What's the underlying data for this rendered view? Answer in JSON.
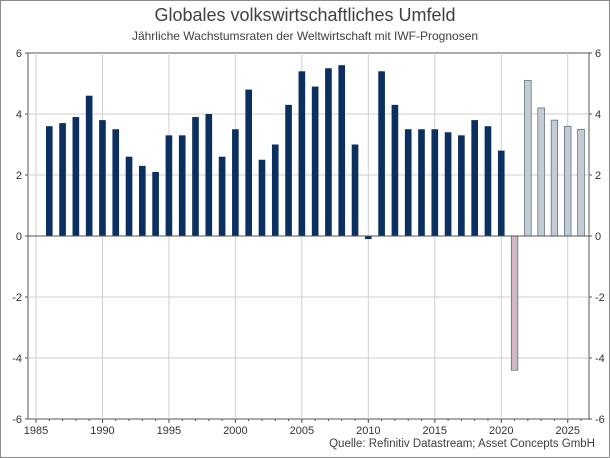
{
  "chart_data": {
    "type": "bar",
    "title": "Globales volkswirtschaftliches Umfeld",
    "subtitle": "Jährliche Wachstumsraten der Weltwirtschaft mit IWF-Prognosen",
    "source": "Quelle: Refinitiv Datastream; Asset Concepts GmbH",
    "xlabel": "",
    "ylabel": "",
    "xlim": [
      1985,
      2026
    ],
    "ylim": [
      -6,
      6
    ],
    "x_ticks": [
      1985,
      1990,
      1995,
      2000,
      2005,
      2010,
      2015,
      2020,
      2025
    ],
    "y_ticks": [
      -6,
      -4,
      -2,
      0,
      2,
      4,
      6
    ],
    "grid": true,
    "colors": {
      "historical": "#0b2f5e",
      "recession_2020": "#d2b8c3",
      "forecast": "#c3ccd5",
      "grid": "#cfcfcf",
      "axis": "#555555"
    },
    "series": [
      {
        "values": [
          {
            "x": 1986,
            "y": 3.6
          },
          {
            "x": 1987,
            "y": 3.7
          },
          {
            "x": 1988,
            "y": 3.9
          },
          {
            "x": 1989,
            "y": 4.6
          },
          {
            "x": 1990,
            "y": 3.8
          },
          {
            "x": 1991,
            "y": 3.5
          },
          {
            "x": 1992,
            "y": 2.6
          },
          {
            "x": 1993,
            "y": 2.3
          },
          {
            "x": 1994,
            "y": 2.1
          },
          {
            "x": 1995,
            "y": 3.3
          },
          {
            "x": 1996,
            "y": 3.3
          },
          {
            "x": 1997,
            "y": 3.9
          },
          {
            "x": 1998,
            "y": 4.0
          },
          {
            "x": 1999,
            "y": 2.6
          },
          {
            "x": 2000,
            "y": 3.5
          },
          {
            "x": 2001,
            "y": 4.8
          },
          {
            "x": 2002,
            "y": 2.5
          },
          {
            "x": 2003,
            "y": 3.0
          },
          {
            "x": 2004,
            "y": 4.3
          },
          {
            "x": 2005,
            "y": 5.4
          },
          {
            "x": 2006,
            "y": 4.9
          },
          {
            "x": 2007,
            "y": 5.5
          },
          {
            "x": 2008,
            "y": 5.6
          },
          {
            "x": 2009,
            "y": 3.0
          },
          {
            "x": 2010,
            "y": -0.1
          },
          {
            "x": 2011,
            "y": 5.4
          },
          {
            "x": 2012,
            "y": 4.3
          },
          {
            "x": 2013,
            "y": 3.5
          },
          {
            "x": 2014,
            "y": 3.5
          },
          {
            "x": 2015,
            "y": 3.5
          },
          {
            "x": 2016,
            "y": 3.4
          },
          {
            "x": 2017,
            "y": 3.3
          },
          {
            "x": 2018,
            "y": 3.8
          },
          {
            "x": 2019,
            "y": 3.6
          },
          {
            "x": 2020,
            "y": 2.8
          },
          {
            "x": 2021,
            "y": -4.4,
            "kind": "recession_2020"
          },
          {
            "x": 2022,
            "y": 5.1,
            "kind": "forecast"
          },
          {
            "x": 2023,
            "y": 4.2,
            "kind": "forecast"
          },
          {
            "x": 2024,
            "y": 3.8,
            "kind": "forecast"
          },
          {
            "x": 2025,
            "y": 3.6,
            "kind": "forecast"
          },
          {
            "x": 2026,
            "y": 3.5,
            "kind": "forecast"
          }
        ]
      }
    ]
  }
}
